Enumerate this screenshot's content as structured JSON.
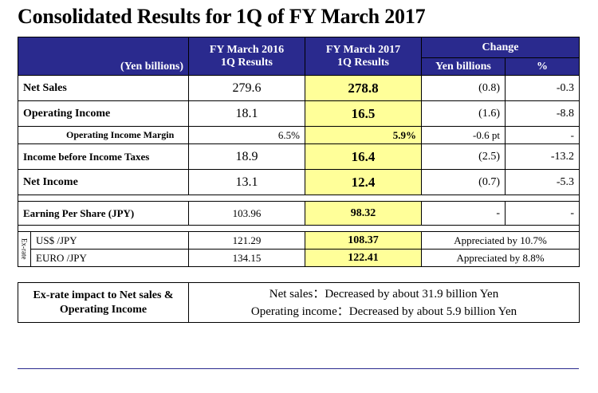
{
  "title": "Consolidated Results for 1Q of FY March 2017",
  "header": {
    "unit": "(Yen billions)",
    "col_2016_line1": "FY March 2016",
    "col_2016_line2": "1Q Results",
    "col_2017_line1": "FY March 2017",
    "col_2017_line2": "1Q Results",
    "change": "Change",
    "change_yen": "Yen billions",
    "change_pct": "%"
  },
  "rows": [
    {
      "label": "Net Sales",
      "v2016": "279.6",
      "v2017": "278.8",
      "chg_yen": "(0.8)",
      "chg_pct": "-0.3"
    },
    {
      "label": "Operating Income",
      "v2016": "18.1",
      "v2017": "16.5",
      "chg_yen": "(1.6)",
      "chg_pct": "-8.8"
    },
    {
      "label": "Operating Income Margin",
      "v2016": "6.5%",
      "v2017": "5.9%",
      "chg_yen": "-0.6 pt",
      "chg_pct": "-"
    },
    {
      "label": "Income before Income Taxes",
      "v2016": "18.9",
      "v2017": "16.4",
      "chg_yen": "(2.5)",
      "chg_pct": "-13.2"
    },
    {
      "label": "Net Income",
      "v2016": "13.1",
      "v2017": "12.4",
      "chg_yen": "(0.7)",
      "chg_pct": "-5.3"
    }
  ],
  "eps": {
    "label": "Earning Per Share (JPY)",
    "v2016": "103.96",
    "v2017": "98.32",
    "chg_yen": "-",
    "chg_pct": "-"
  },
  "exrate": {
    "side_label": "Ex-rate",
    "usd": {
      "label": "US$ /JPY",
      "v2016": "121.29",
      "v2017": "108.37",
      "note": "Appreciated by 10.7%"
    },
    "euro": {
      "label": "EURO /JPY",
      "v2016": "134.15",
      "v2017": "122.41",
      "note": "Appreciated by 8.8%"
    }
  },
  "impact": {
    "label_line1": "Ex-rate impact to Net sales &",
    "label_line2": "Operating Income",
    "line1": "Net sales：Decreased by about 31.9 billion Yen",
    "line2": "Operating income：Decreased by about 5.9 billion Yen"
  },
  "colors": {
    "header_bg": "#2a2a8e",
    "highlight": "#ffff99"
  }
}
